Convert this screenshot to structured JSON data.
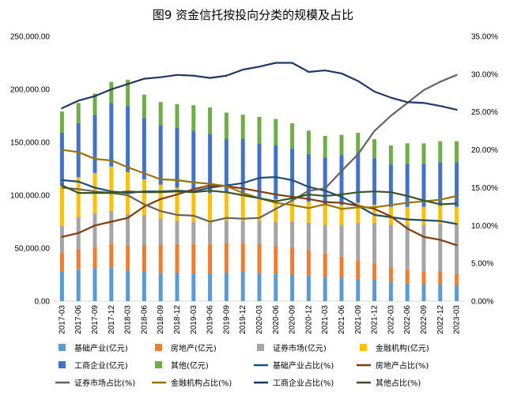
{
  "chart_data": {
    "type": "bar",
    "title": "图9  资金信托按投向分类的规模及占比",
    "categories": [
      "2017-03",
      "2017-06",
      "2017-09",
      "2017-12",
      "2018-03",
      "2018-06",
      "2018-09",
      "2018-12",
      "2019-03",
      "2019-06",
      "2019-09",
      "2019-12",
      "2020-03",
      "2020-06",
      "2020-09",
      "2020-12",
      "2021-03",
      "2021-06",
      "2021-09",
      "2021-12",
      "2022-03",
      "2022-06",
      "2022-09",
      "2022-12",
      "2023-03"
    ],
    "y_left": {
      "min": 0,
      "max": 250000,
      "ticks": [
        "0.00",
        "50,000.00",
        "100,000.00",
        "150,000.00",
        "200,000.00",
        "250,000.00"
      ]
    },
    "y_right": {
      "min": 0,
      "max": 35,
      "ticks": [
        "0.00%",
        "5.00%",
        "10.00%",
        "15.00%",
        "20.00%",
        "25.00%",
        "30.00%",
        "35.00%"
      ]
    },
    "bar_series": [
      {
        "name": "基础产业(亿元)",
        "color": "#5b9bd5",
        "values": [
          28000,
          30000,
          31000,
          32000,
          29000,
          28000,
          27000,
          27000,
          26000,
          26000,
          27000,
          28000,
          27000,
          26000,
          25000,
          24000,
          23000,
          22000,
          21000,
          20000,
          18000,
          17000,
          16000,
          16000,
          15000
        ]
      },
      {
        "name": "房地产(亿元)",
        "color": "#ed7d31",
        "values": [
          18000,
          19000,
          20000,
          22000,
          23000,
          25000,
          26000,
          27000,
          28000,
          28000,
          28000,
          27000,
          27000,
          26000,
          25000,
          24000,
          22000,
          20000,
          18000,
          16000,
          14000,
          13000,
          12000,
          12000,
          11000
        ]
      },
      {
        "name": "证券市场(亿元)",
        "color": "#a5a5a5",
        "values": [
          25000,
          30000,
          32000,
          31000,
          30000,
          28000,
          25000,
          22000,
          21000,
          20000,
          21000,
          21000,
          22000,
          23000,
          25000,
          26000,
          27000,
          30000,
          35000,
          38000,
          40000,
          42000,
          44000,
          45000,
          46000
        ]
      },
      {
        "name": "金融机构(亿元)",
        "color": "#ffc000",
        "values": [
          38000,
          38000,
          38000,
          42000,
          40000,
          34000,
          32000,
          31000,
          30000,
          28000,
          27000,
          25000,
          22000,
          21000,
          21000,
          20000,
          19000,
          19000,
          19000,
          17000,
          17000,
          17000,
          17000,
          17000,
          17000
        ]
      },
      {
        "name": "工商企业(亿元)",
        "color": "#4472c4",
        "values": [
          50000,
          51000,
          55000,
          60000,
          62000,
          58000,
          56000,
          57000,
          56000,
          56000,
          50000,
          52000,
          51000,
          51000,
          48000,
          45000,
          45000,
          47000,
          47000,
          44000,
          40000,
          41000,
          41000,
          41000,
          42000
        ]
      },
      {
        "name": "其他(亿元)",
        "color": "#70ad47",
        "values": [
          20000,
          19000,
          20000,
          20000,
          25000,
          22000,
          22000,
          22000,
          24000,
          25000,
          25000,
          23000,
          25000,
          25000,
          24000,
          22000,
          20000,
          19000,
          19000,
          18000,
          18000,
          19000,
          19000,
          20000,
          20000
        ]
      }
    ],
    "line_series": [
      {
        "name": "基础产业占比(%)",
        "color": "#1f4e79",
        "values": [
          16.0,
          15.8,
          15.0,
          14.5,
          14.3,
          14.5,
          14.5,
          14.6,
          14.5,
          15.0,
          15.3,
          15.6,
          16.3,
          16.4,
          16.0,
          15.1,
          14.6,
          13.8,
          12.6,
          11.4,
          11.1,
          10.8,
          10.7,
          10.6,
          10.2
        ]
      },
      {
        "name": "房地产占比(%)",
        "color": "#843c0c",
        "values": [
          8.5,
          9.0,
          10.0,
          10.5,
          11.0,
          12.5,
          13.5,
          14.1,
          14.8,
          15.3,
          15.2,
          14.9,
          14.5,
          14.1,
          13.8,
          13.5,
          13.1,
          13.0,
          12.6,
          12.2,
          11.2,
          9.6,
          8.5,
          8.1,
          7.4
        ]
      },
      {
        "name": "证券市场占比(%)",
        "color": "#636363",
        "values": [
          15.0,
          14.8,
          14.5,
          14.3,
          14.0,
          12.8,
          11.9,
          11.4,
          11.3,
          10.5,
          11.0,
          10.9,
          11.0,
          12.2,
          13.3,
          14.6,
          14.9,
          17.2,
          19.4,
          22.5,
          24.5,
          26.2,
          27.9,
          29.0,
          29.9
        ]
      },
      {
        "name": "金融机构占比(%)",
        "color": "#997300",
        "values": [
          20.0,
          19.7,
          18.8,
          18.6,
          17.7,
          16.9,
          16.1,
          16.0,
          15.7,
          15.5,
          15.2,
          14.3,
          13.6,
          13.0,
          12.7,
          12.3,
          12.8,
          12.2,
          12.4,
          12.4,
          12.7,
          13.0,
          13.2,
          13.4,
          13.9
        ]
      },
      {
        "name": "工商企业占比(%)",
        "color": "#203864",
        "values": [
          25.5,
          26.5,
          27.1,
          28.0,
          28.7,
          29.4,
          29.6,
          29.9,
          29.8,
          29.5,
          29.8,
          30.6,
          31.0,
          31.5,
          31.5,
          30.3,
          30.5,
          30.1,
          29.1,
          27.7,
          26.9,
          26.3,
          26.2,
          25.8,
          25.3
        ]
      },
      {
        "name": "其他占比(%)",
        "color": "#375623",
        "values": [
          15.3,
          14.3,
          14.3,
          14.3,
          14.5,
          14.4,
          14.4,
          14.5,
          14.4,
          14.6,
          14.4,
          14.0,
          13.6,
          13.2,
          13.6,
          14.1,
          13.9,
          14.1,
          14.4,
          14.5,
          14.4,
          13.9,
          13.3,
          12.8,
          12.9
        ]
      }
    ],
    "legend": "bottom",
    "grid": false
  }
}
